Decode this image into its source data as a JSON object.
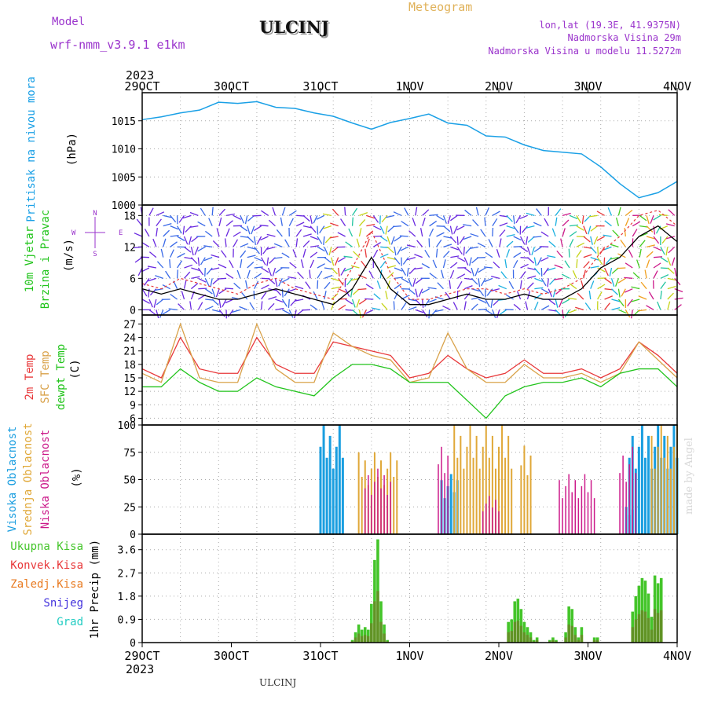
{
  "header": {
    "meteogram_label": "Meteogram",
    "model_label": "Model",
    "model_name": "wrf-nmm_v3.9.1  e1km",
    "station": "ULCINJ",
    "lonlat": "lon,lat (19.3E, 41.9375N)",
    "elevation": "Nadmorska Visina 29m",
    "model_elevation": "Nadmorska Visina u modelu 11.5272m",
    "watermark": "made by Angel",
    "footer_station": "ULCINJ"
  },
  "colors": {
    "pressure": "#1aa0e6",
    "temp2m": "#e8383a",
    "sfc_temp": "#d9a24a",
    "dewpt": "#22c41c",
    "high_cloud": "#1a9ee0",
    "mid_cloud": "#e0a838",
    "low_cloud": "#cc1a8a",
    "precip_total": "#44c52a",
    "precip_conv": "#e8383a",
    "precip_strat": "#e87a20",
    "snow": "#4433dd",
    "grad": "#22ccc2",
    "wind_gust": "#e8383a"
  },
  "chart_data": [
    {
      "type": "line",
      "panel": "pressure",
      "ylabel": "(hPa)",
      "side_label": "Pritisak na nivou mora",
      "ylim": [
        1000,
        1020
      ],
      "yticks": [
        1000,
        1005,
        1010,
        1015
      ],
      "grid": true,
      "x_hours": [
        0,
        6,
        12,
        18,
        24,
        30,
        36,
        42,
        48,
        54,
        60,
        66,
        72,
        78,
        84,
        90,
        96,
        102,
        108,
        114,
        120,
        126,
        132,
        138,
        144,
        150,
        156,
        162,
        168
      ],
      "values": [
        1015.2,
        1015.7,
        1016.4,
        1016.9,
        1018.3,
        1018.1,
        1018.4,
        1017.4,
        1017.2,
        1016.4,
        1015.8,
        1014.6,
        1013.5,
        1014.7,
        1015.4,
        1016.2,
        1014.6,
        1014.2,
        1012.3,
        1012.1,
        1010.7,
        1009.7,
        1009.4,
        1009.1,
        1006.8,
        1003.8,
        1001.3,
        1002.2,
        1004.2
      ]
    },
    {
      "type": "line",
      "panel": "wind",
      "ylabel": "(m/s)",
      "side_label": [
        "10m Vjetar",
        "Brzina i Pravac"
      ],
      "compass": [
        "N",
        "W",
        "E",
        "S"
      ],
      "ylim": [
        -1,
        20
      ],
      "yticks": [
        0,
        6,
        12,
        18
      ],
      "grid": true,
      "x_hours": [
        0,
        6,
        12,
        18,
        24,
        30,
        36,
        42,
        48,
        54,
        60,
        66,
        72,
        78,
        84,
        90,
        96,
        102,
        108,
        114,
        120,
        126,
        132,
        138,
        144,
        150,
        156,
        162,
        168
      ],
      "series": [
        {
          "values": [
            4,
            3,
            4,
            3,
            2,
            2,
            3,
            4,
            3,
            2,
            1,
            4,
            10,
            4,
            1,
            1,
            2,
            3,
            2,
            2,
            3,
            2,
            2,
            4,
            8,
            10,
            14,
            16,
            13
          ]
        },
        {
          "values": [
            5,
            4,
            6,
            5,
            4,
            3,
            5,
            6,
            4,
            3,
            2,
            8,
            15,
            7,
            2,
            2,
            3,
            4,
            4,
            3,
            4,
            3,
            4,
            6,
            11,
            14,
            18,
            19,
            16
          ]
        }
      ]
    },
    {
      "type": "line",
      "panel": "temperature",
      "ylabel": "(C)",
      "side_label": [
        "2m Temp",
        "SFC Temp",
        "dewpt Temp"
      ],
      "ylim": [
        4.5,
        29
      ],
      "yticks": [
        6,
        9,
        12,
        15,
        18,
        21,
        24,
        27
      ],
      "grid": true,
      "x_hours": [
        0,
        6,
        12,
        18,
        24,
        30,
        36,
        42,
        48,
        54,
        60,
        66,
        72,
        78,
        84,
        90,
        96,
        102,
        108,
        114,
        120,
        126,
        132,
        138,
        144,
        150,
        156,
        162,
        168
      ],
      "series": [
        {
          "name": "2m Temp",
          "values": [
            17,
            15,
            24,
            17,
            16,
            16,
            24,
            18,
            16,
            16,
            23,
            22,
            21,
            20,
            15,
            16,
            20,
            17,
            15,
            16,
            19,
            16,
            16,
            17,
            15,
            17,
            23,
            20,
            16
          ]
        },
        {
          "name": "SFC Temp",
          "values": [
            16,
            14,
            27,
            15,
            14,
            14,
            27,
            17,
            14,
            14,
            25,
            22,
            20,
            19,
            14,
            15,
            25,
            17,
            14,
            14,
            18,
            15,
            15,
            16,
            14,
            16,
            23,
            19,
            15
          ]
        },
        {
          "name": "dewpt Temp",
          "values": [
            13,
            13,
            17,
            14,
            12,
            12,
            15,
            13,
            12,
            11,
            15,
            18,
            18,
            17,
            14,
            14,
            14,
            10,
            6,
            11,
            13,
            14,
            14,
            15,
            13,
            16,
            17,
            17,
            13
          ]
        }
      ]
    },
    {
      "type": "bar",
      "panel": "cloud",
      "ylabel": "(%)",
      "side_label": [
        "Visoka Oblacnost",
        "Srednja Oblacnost",
        "Niska Oblacnost"
      ],
      "ylim": [
        0,
        100
      ],
      "yticks": [
        0,
        25,
        50,
        75,
        100
      ],
      "grid": true,
      "series": [
        {
          "name": "Visoka Oblacnost",
          "segments": [
            [
              56,
              63,
              100
            ],
            [
              94,
              99,
              55
            ],
            [
              153,
              168,
              100
            ],
            [
              152,
              154,
              25
            ]
          ]
        },
        {
          "name": "Srednja Oblacnost",
          "segments": [
            [
              68,
              80,
              75
            ],
            [
              98,
              116,
              100
            ],
            [
              119,
              122,
              90
            ],
            [
              160,
              168,
              100
            ]
          ]
        },
        {
          "name": "Niska Oblacnost",
          "segments": [
            [
              70,
              78,
              60
            ],
            [
              93,
              96,
              80
            ],
            [
              107,
              112,
              35
            ],
            [
              131,
              142,
              55
            ],
            [
              150,
              155,
              80
            ]
          ]
        }
      ]
    },
    {
      "type": "bar",
      "panel": "precipitation",
      "ylabel": "1hr Precip (mm)",
      "legend": [
        "Ukupna Kisa",
        "Konvek.Kisa",
        "Zaledj.Kisa",
        "Snijeg",
        "Grad"
      ],
      "ylim": [
        0,
        4.2
      ],
      "yticks": [
        0,
        0.9,
        1.8,
        2.7,
        3.6
      ],
      "grid": true,
      "x_hours": [
        66,
        67,
        68,
        69,
        70,
        71,
        72,
        73,
        74,
        75,
        76,
        77,
        115,
        116,
        117,
        118,
        119,
        120,
        121,
        122,
        123,
        124,
        128,
        129,
        130,
        133,
        134,
        135,
        136,
        137,
        138,
        142,
        143,
        154,
        155,
        156,
        157,
        158,
        159,
        160,
        161,
        162,
        163
      ],
      "values": [
        0.1,
        0.4,
        0.7,
        0.5,
        0.6,
        0.5,
        1.5,
        3.2,
        4.0,
        1.6,
        0.7,
        0.1,
        0.8,
        0.9,
        1.6,
        1.7,
        1.3,
        0.8,
        0.6,
        0.4,
        0.1,
        0.2,
        0.1,
        0.2,
        0.1,
        0.4,
        1.4,
        1.3,
        0.6,
        0.2,
        0.6,
        0.2,
        0.2,
        1.2,
        1.8,
        2.2,
        2.5,
        2.4,
        1.9,
        1.0,
        2.6,
        2.3,
        2.5
      ]
    }
  ],
  "x_axis": {
    "year": "2023",
    "labels": [
      "29OCT",
      "30OCT",
      "31OCT",
      "1NOV",
      "2NOV",
      "3NOV",
      "4NOV"
    ],
    "label_hours": [
      0,
      24,
      48,
      72,
      96,
      120,
      144
    ]
  }
}
